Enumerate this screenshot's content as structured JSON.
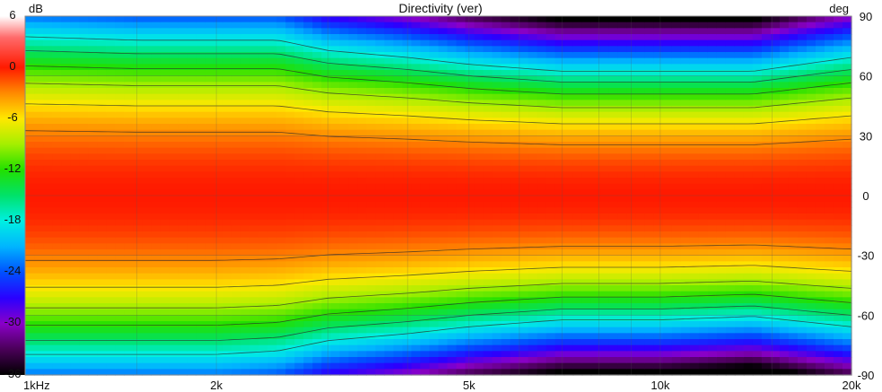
{
  "chart_data": {
    "type": "heatmap",
    "title": "Directivity (ver)",
    "xscale": "log",
    "xlim": [
      1000,
      20000
    ],
    "ylim": [
      -90,
      90
    ],
    "x_ticks": [
      {
        "value": 1000,
        "label": "1kHz"
      },
      {
        "value": 2000,
        "label": "2k"
      },
      {
        "value": 5000,
        "label": "5k"
      },
      {
        "value": 10000,
        "label": "10k"
      },
      {
        "value": 20000,
        "label": "20k"
      }
    ],
    "y_ticks": [
      {
        "value": 90,
        "label": "90"
      },
      {
        "value": 60,
        "label": "60"
      },
      {
        "value": 30,
        "label": "30"
      },
      {
        "value": 0,
        "label": "0"
      },
      {
        "value": -30,
        "label": "-30"
      },
      {
        "value": -60,
        "label": "-60"
      },
      {
        "value": -90,
        "label": "-90"
      }
    ],
    "y_unit": "deg",
    "colorbar": {
      "unit": "dB",
      "range": [
        -36,
        6
      ],
      "ticks": [
        "6",
        "0",
        "-6",
        "-12",
        "-18",
        "-24",
        "-30",
        "-36"
      ],
      "stops": [
        {
          "db": 6,
          "color": "#ffffff"
        },
        {
          "db": 3.5,
          "color": "#ff6a6a"
        },
        {
          "db": 0,
          "color": "#ff1a00"
        },
        {
          "db": -3,
          "color": "#ff8a00"
        },
        {
          "db": -6,
          "color": "#ffe800"
        },
        {
          "db": -9,
          "color": "#a4ef00"
        },
        {
          "db": -12,
          "color": "#22e000"
        },
        {
          "db": -15,
          "color": "#00e26a"
        },
        {
          "db": -18,
          "color": "#00efe2"
        },
        {
          "db": -21,
          "color": "#00b4ff"
        },
        {
          "db": -24,
          "color": "#0050ff"
        },
        {
          "db": -27,
          "color": "#2a00ff"
        },
        {
          "db": -30,
          "color": "#8a00c8"
        },
        {
          "db": -33,
          "color": "#4a0058"
        },
        {
          "db": -36,
          "color": "#000000"
        }
      ]
    },
    "contour_levels_db": [
      -3,
      -6,
      -9,
      -12,
      -15,
      -18
    ],
    "beamwidth_6db": {
      "freq": [
        1000,
        1500,
        2000,
        2500,
        3000,
        4000,
        5000,
        7000,
        10000,
        14000,
        20000
      ],
      "upper": [
        46,
        45,
        45,
        45,
        42,
        40,
        38,
        36,
        36,
        36,
        40
      ],
      "lower": [
        -46,
        -46,
        -46,
        -45,
        -42,
        -40,
        -38,
        -36,
        -36,
        -35,
        -38
      ]
    },
    "grid": true,
    "grid_color": "#555555"
  }
}
